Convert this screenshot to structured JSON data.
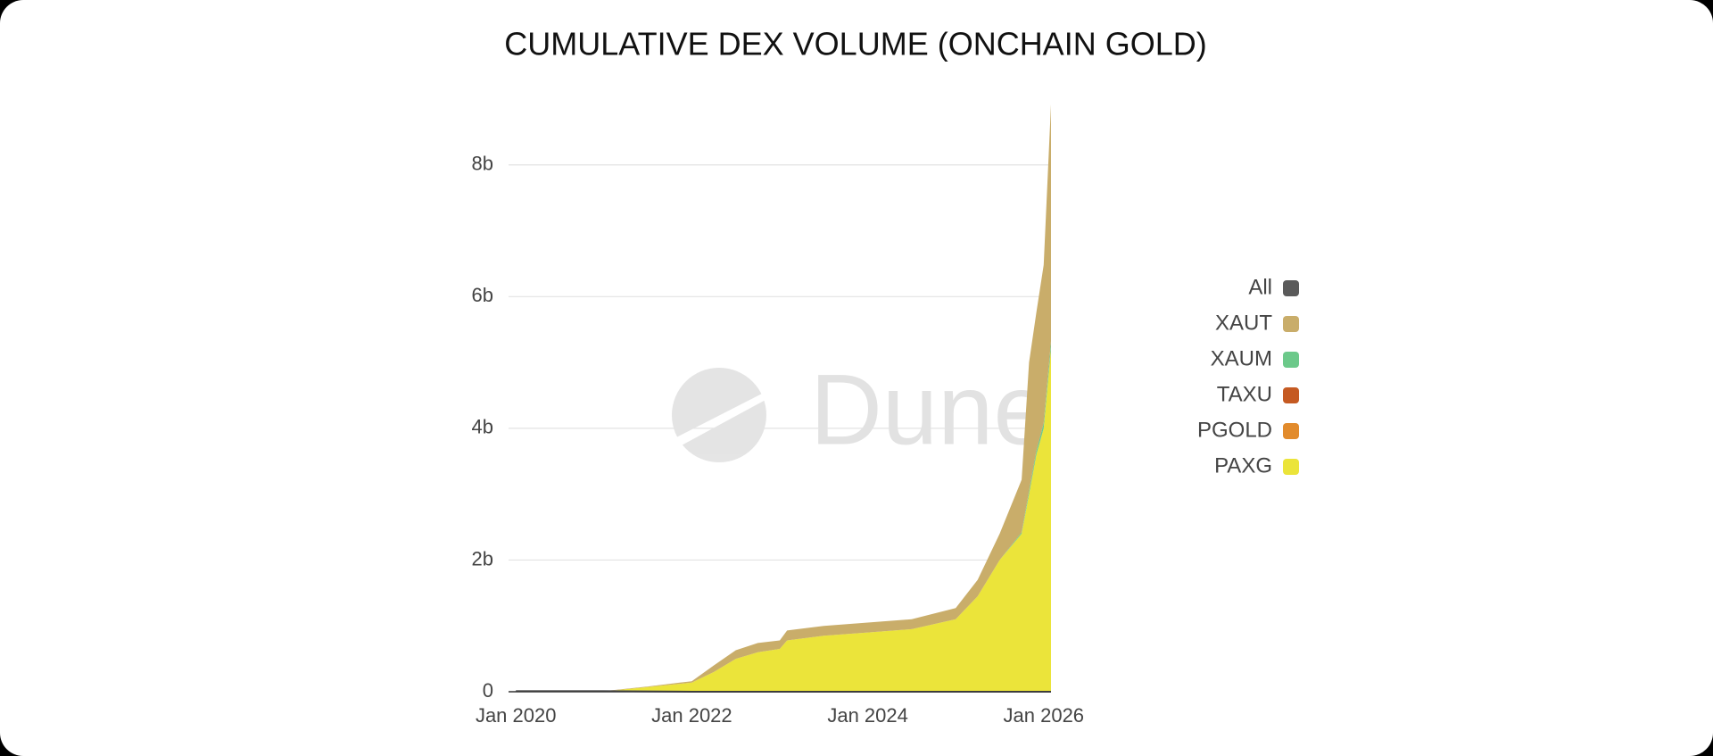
{
  "chart_data": {
    "type": "stacked-area",
    "title": "CUMULATIVE DEX VOLUME (ONCHAIN GOLD)",
    "watermark": "Dune",
    "x": [
      "2020-01",
      "2021-01",
      "2021-07",
      "2022-01",
      "2022-04",
      "2022-07",
      "2022-10",
      "2023-01",
      "2023-02",
      "2023-07",
      "2024-01",
      "2024-07",
      "2025-01",
      "2025-04",
      "2025-07",
      "2025-10",
      "2025-11",
      "2025-12",
      "2026-01",
      "2026-02"
    ],
    "series": [
      {
        "name": "All",
        "color": "#5a5a5a",
        "line": true,
        "values": [
          0.01,
          0.01,
          0.005,
          0,
          0,
          0,
          0,
          0,
          0,
          0,
          0,
          0,
          0,
          0,
          0,
          0,
          0,
          0,
          0,
          0
        ]
      },
      {
        "name": "XAUT",
        "color": "#c9ad6a",
        "values": [
          0.005,
          0.005,
          0.01,
          0.02,
          0.1,
          0.13,
          0.14,
          0.13,
          0.15,
          0.15,
          0.15,
          0.15,
          0.17,
          0.25,
          0.4,
          0.8,
          1.95,
          2.1,
          2.4,
          3.6
        ]
      },
      {
        "name": "XAUM",
        "color": "#6cc98a",
        "values": [
          0,
          0,
          0,
          0,
          0,
          0,
          0,
          0,
          0,
          0,
          0,
          0,
          0,
          0,
          0,
          0.02,
          0.05,
          0.06,
          0.08,
          0.1
        ]
      },
      {
        "name": "TAXU",
        "color": "#c55a22",
        "values": [
          0,
          0,
          0,
          0,
          0,
          0,
          0,
          0,
          0,
          0,
          0,
          0,
          0,
          0,
          0,
          0,
          0,
          0,
          0,
          0.01
        ]
      },
      {
        "name": "PGOLD",
        "color": "#e28b2c",
        "values": [
          0,
          0,
          0,
          0,
          0,
          0,
          0,
          0,
          0,
          0,
          0,
          0,
          0,
          0,
          0,
          0,
          0,
          0,
          0,
          0.01
        ]
      },
      {
        "name": "PAXG",
        "color": "#ebe43a",
        "values": [
          0,
          0.005,
          0.07,
          0.14,
          0.3,
          0.5,
          0.6,
          0.65,
          0.78,
          0.85,
          0.9,
          0.95,
          1.1,
          1.45,
          2.0,
          2.4,
          3.0,
          3.6,
          4.0,
          5.2
        ]
      }
    ],
    "xlim": [
      "2019-12",
      "2026-02"
    ],
    "xticks": [
      {
        "value": "2020-01",
        "label": "Jan 2020"
      },
      {
        "value": "2022-01",
        "label": "Jan 2022"
      },
      {
        "value": "2024-01",
        "label": "Jan 2024"
      },
      {
        "value": "2026-01",
        "label": "Jan 2026"
      }
    ],
    "ylim": [
      0,
      9
    ],
    "yticks": [
      0,
      {
        "value": 2,
        "label": "2b"
      },
      {
        "value": 4,
        "label": "4b"
      },
      {
        "value": 6,
        "label": "6b"
      },
      {
        "value": 8,
        "label": "8b"
      }
    ],
    "grid": true,
    "legend": "right"
  }
}
